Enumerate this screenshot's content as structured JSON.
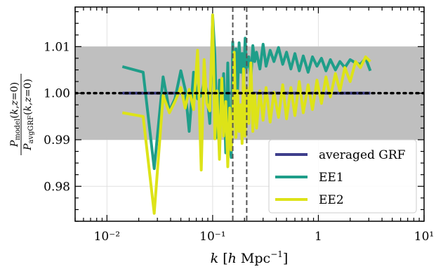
{
  "chart_data": {
    "type": "line",
    "xscale": "log",
    "xlim": [
      0.005,
      10
    ],
    "ylim": [
      0.9725,
      1.0185
    ],
    "xticks": [
      {
        "value": 0.01,
        "label": "10⁻²"
      },
      {
        "value": 0.1,
        "label": "10⁻¹"
      },
      {
        "value": 1,
        "label": "1"
      },
      {
        "value": 10,
        "label": "10¹"
      }
    ],
    "yticks": [
      {
        "value": 0.98,
        "label": "0.98"
      },
      {
        "value": 0.99,
        "label": "0.99"
      },
      {
        "value": 1.0,
        "label": "1.00"
      },
      {
        "value": 1.01,
        "label": "1.01"
      }
    ],
    "xlabel": "k [h Mpc⁻¹]",
    "ylabel": "P_model(k,z=0) / P_avgGRF(k,z=0)",
    "grid": true,
    "legend_position": "lower-right",
    "shaded_band": {
      "ymin": 0.99,
      "ymax": 1.01,
      "color": "#bfbfbf"
    },
    "reference_line": {
      "y": 1.0,
      "style": "dotted",
      "color": "#000000"
    },
    "vertical_lines": [
      {
        "x": 0.155,
        "style": "dashed",
        "color": "#555555"
      },
      {
        "x": 0.21,
        "style": "dashed",
        "color": "#555555"
      }
    ],
    "series": [
      {
        "name": "averaged GRF",
        "color": "#3f3f8c",
        "x": [
          0.014,
          3.1
        ],
        "y": [
          1.0,
          1.0
        ]
      },
      {
        "name": "EE1",
        "color": "#1f9e89",
        "x": [
          0.014,
          0.022,
          0.028,
          0.034,
          0.039,
          0.044,
          0.05,
          0.055,
          0.06,
          0.066,
          0.072,
          0.078,
          0.083,
          0.088,
          0.094,
          0.1,
          0.105,
          0.11,
          0.116,
          0.122,
          0.127,
          0.133,
          0.139,
          0.145,
          0.15,
          0.155,
          0.16,
          0.166,
          0.172,
          0.178,
          0.184,
          0.19,
          0.196,
          0.203,
          0.21,
          0.22,
          0.23,
          0.24,
          0.25,
          0.26,
          0.28,
          0.3,
          0.32,
          0.35,
          0.38,
          0.42,
          0.46,
          0.5,
          0.55,
          0.6,
          0.66,
          0.72,
          0.8,
          0.88,
          0.97,
          1.07,
          1.18,
          1.3,
          1.45,
          1.6,
          1.78,
          2.0,
          2.25,
          2.5,
          2.8,
          3.1
        ],
        "y": [
          1.0057,
          1.0045,
          0.9838,
          1.0035,
          0.9962,
          0.9988,
          1.0048,
          1.0008,
          0.9918,
          1.0045,
          0.9988,
          0.9995,
          1.0025,
          1.0005,
          0.9935,
          1.0168,
          1.0082,
          0.9905,
          1.0028,
          0.9938,
          1.0042,
          0.9872,
          1.0065,
          0.9895,
          0.9862,
          1.011,
          0.9945,
          1.0095,
          1.0002,
          1.0108,
          1.0045,
          1.0085,
          1.0025,
          1.0118,
          1.0055,
          1.0078,
          1.0032,
          1.0102,
          1.0068,
          1.0088,
          1.0052,
          1.0105,
          1.0058,
          1.0092,
          1.0068,
          1.0098,
          1.0062,
          1.0088,
          1.0052,
          1.0085,
          1.0048,
          1.008,
          1.0045,
          1.0078,
          1.0058,
          1.0075,
          1.0048,
          1.0072,
          1.005,
          1.0068,
          1.0055,
          1.0072,
          1.0065,
          1.0062,
          1.0075,
          1.0048
        ]
      },
      {
        "name": "EE2",
        "color": "#dde318",
        "x": [
          0.014,
          0.022,
          0.028,
          0.034,
          0.039,
          0.044,
          0.05,
          0.055,
          0.06,
          0.066,
          0.072,
          0.078,
          0.083,
          0.088,
          0.094,
          0.1,
          0.105,
          0.11,
          0.116,
          0.122,
          0.127,
          0.133,
          0.139,
          0.145,
          0.15,
          0.155,
          0.16,
          0.166,
          0.172,
          0.178,
          0.184,
          0.19,
          0.196,
          0.203,
          0.21,
          0.22,
          0.23,
          0.24,
          0.25,
          0.26,
          0.28,
          0.3,
          0.32,
          0.35,
          0.38,
          0.42,
          0.46,
          0.5,
          0.55,
          0.6,
          0.66,
          0.72,
          0.8,
          0.88,
          0.97,
          1.07,
          1.18,
          1.3,
          1.45,
          1.6,
          1.78,
          2.0,
          2.25,
          2.5,
          2.8,
          3.1
        ],
        "y": [
          0.9958,
          0.995,
          0.9742,
          0.9995,
          0.9958,
          0.9982,
          1.0012,
          0.9968,
          1.0008,
          0.9965,
          1.0092,
          0.9835,
          1.0072,
          0.9978,
          0.9962,
          1.0168,
          0.9902,
          1.0005,
          0.9858,
          1.0032,
          0.9908,
          0.9982,
          0.9842,
          0.9968,
          0.9878,
          0.9942,
          1.0088,
          0.9905,
          1.0005,
          0.9918,
          0.9975,
          0.9892,
          1.0052,
          0.9908,
          1.0012,
          0.9935,
          1.0065,
          0.9918,
          0.9998,
          0.9925,
          1.0005,
          0.9942,
          1.0012,
          0.9938,
          1.0002,
          0.9948,
          1.0018,
          0.9945,
          1.0012,
          0.9952,
          1.0025,
          0.9958,
          1.0018,
          0.9965,
          1.0028,
          0.9978,
          1.0035,
          0.9992,
          1.0042,
          1.0005,
          1.0055,
          1.0025,
          1.0068,
          1.0055,
          1.0078,
          1.0068
        ]
      }
    ]
  }
}
